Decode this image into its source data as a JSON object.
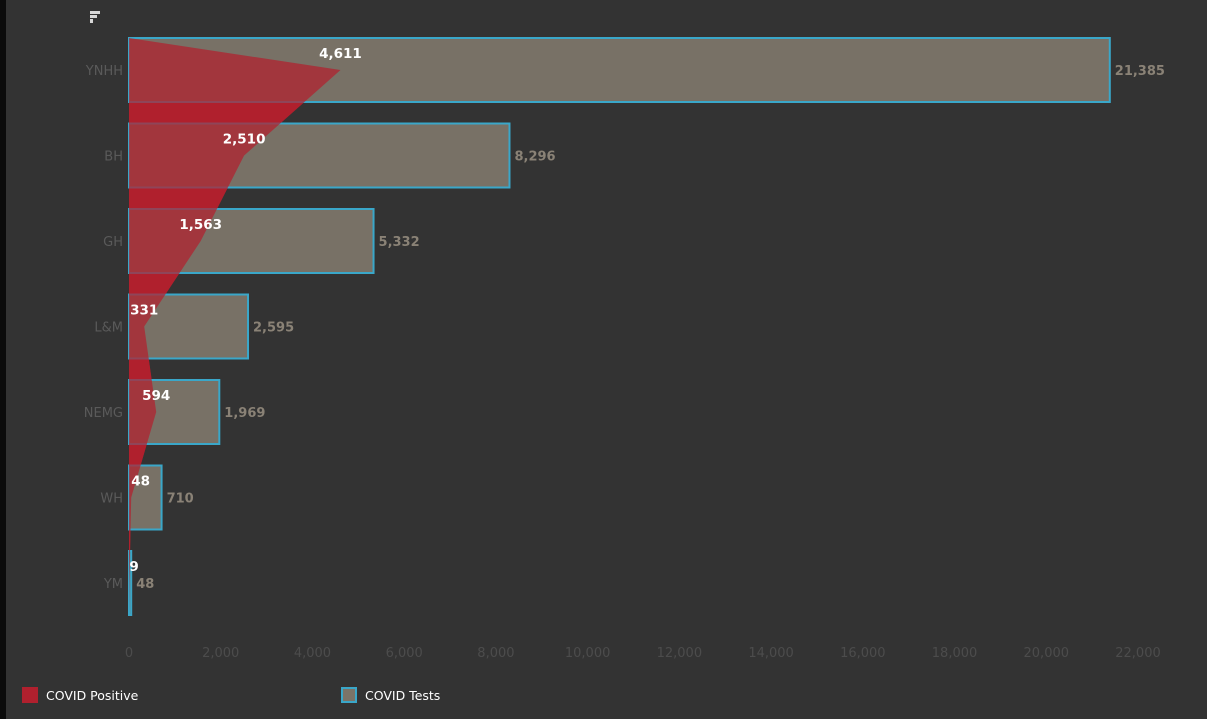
{
  "chart_data": {
    "type": "bar",
    "orientation": "horizontal",
    "title": "",
    "xlabel": "",
    "ylabel": "",
    "xlim": [
      0,
      22000
    ],
    "x_ticks": [
      0,
      2000,
      4000,
      6000,
      8000,
      10000,
      12000,
      14000,
      16000,
      18000,
      20000,
      22000
    ],
    "x_tick_labels": [
      "0",
      "2,000",
      "4,000",
      "6,000",
      "8,000",
      "10,000",
      "12,000",
      "14,000",
      "16,000",
      "18,000",
      "20,000",
      "22,000"
    ],
    "categories": [
      "YNHH",
      "BH",
      "GH",
      "L&M",
      "NEMG",
      "WH",
      "YM"
    ],
    "series": [
      {
        "name": "COVID Tests",
        "key": "tests",
        "mark": "bar",
        "values": [
          21385,
          8296,
          5332,
          2595,
          1969,
          710,
          48
        ],
        "labels": [
          "21,385",
          "8,296",
          "5,332",
          "2,595",
          "1,969",
          "710",
          "48"
        ],
        "fill": "#7b7468",
        "stroke": "#3aa7c9",
        "label_color": "#8a8276"
      },
      {
        "name": "COVID Positive",
        "key": "positive",
        "mark": "area",
        "values": [
          4611,
          2510,
          1563,
          331,
          594,
          48,
          9
        ],
        "labels": [
          "4,611",
          "2,510",
          "1,563",
          "331",
          "594",
          "48",
          "9"
        ],
        "fill": "#b0202e",
        "label_color": "#ffffff"
      }
    ],
    "legend_placement": "bottom-left",
    "grid": false
  },
  "legend": {
    "items": [
      {
        "label": "COVID Positive",
        "color": "#b0202e",
        "border": "#b0202e"
      },
      {
        "label": "COVID Tests",
        "color": "#7b7468",
        "border": "#3aa7c9"
      }
    ]
  },
  "toolbar": {
    "sort_icon": "sort-descending-icon"
  },
  "colors": {
    "background": "#333333",
    "axis_text": "#4c4c4c",
    "category_text": "#5a5a5a"
  }
}
